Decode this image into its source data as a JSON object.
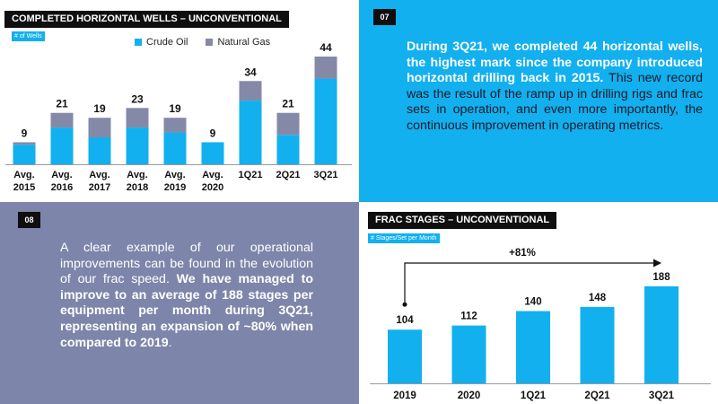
{
  "wells": {
    "title": "COMPLETED HORIZONTAL WELLS – UNCONVENTIONAL",
    "unit_label": "# of Wells",
    "legend": {
      "crude": "Crude Oil",
      "gas": "Natural Gas"
    },
    "colors": {
      "crude": "#12b0ef",
      "gas": "#8589a8"
    }
  },
  "note07": {
    "badge": "07",
    "bold": "During 3Q21, we completed 44 horizontal wells, the highest mark since the company introduced horizontal drilling back in 2015.",
    "normal": " This new record was the result of the ramp up in drilling rigs and frac sets in operation, and even more importantly, the continuous improvement in operating metrics."
  },
  "note08": {
    "badge": "08",
    "normal1": "A clear example of our operational improvements can be found in the evolution of our frac speed. ",
    "bold": "We have managed to improve to an average of 188 stages per equipment per month during 3Q21, representing an expansion of ~80% when compared to 2019",
    "normal2": "."
  },
  "frac": {
    "title": "FRAC STAGES – UNCONVENTIONAL",
    "unit_label": "# Stages/Set per Month",
    "growth_label": "+81%",
    "color": "#12b0ef"
  },
  "chart_data": [
    {
      "type": "bar",
      "stacked": true,
      "title": "COMPLETED HORIZONTAL WELLS – UNCONVENTIONAL",
      "ylabel": "# of Wells",
      "categories": [
        "Avg. 2015",
        "Avg. 2016",
        "Avg. 2017",
        "Avg. 2018",
        "Avg. 2019",
        "Avg. 2020",
        "1Q21",
        "2Q21",
        "3Q21"
      ],
      "totals": [
        9,
        21,
        19,
        23,
        19,
        9,
        34,
        21,
        44
      ],
      "series": [
        {
          "name": "Crude Oil",
          "values": [
            8,
            15,
            11,
            15,
            13,
            9,
            26,
            12,
            35
          ]
        },
        {
          "name": "Natural Gas",
          "values": [
            1,
            6,
            8,
            8,
            6,
            0,
            8,
            9,
            9
          ]
        }
      ],
      "legend": "top-right",
      "grid": false
    },
    {
      "type": "bar",
      "title": "FRAC STAGES – UNCONVENTIONAL",
      "ylabel": "# Stages/Set per Month",
      "categories": [
        "2019",
        "2020",
        "1Q21",
        "2Q21",
        "3Q21"
      ],
      "values": [
        104,
        112,
        140,
        148,
        188
      ],
      "annotations": [
        {
          "text": "+81%",
          "from": "2019",
          "to": "3Q21"
        }
      ],
      "grid": false
    }
  ]
}
